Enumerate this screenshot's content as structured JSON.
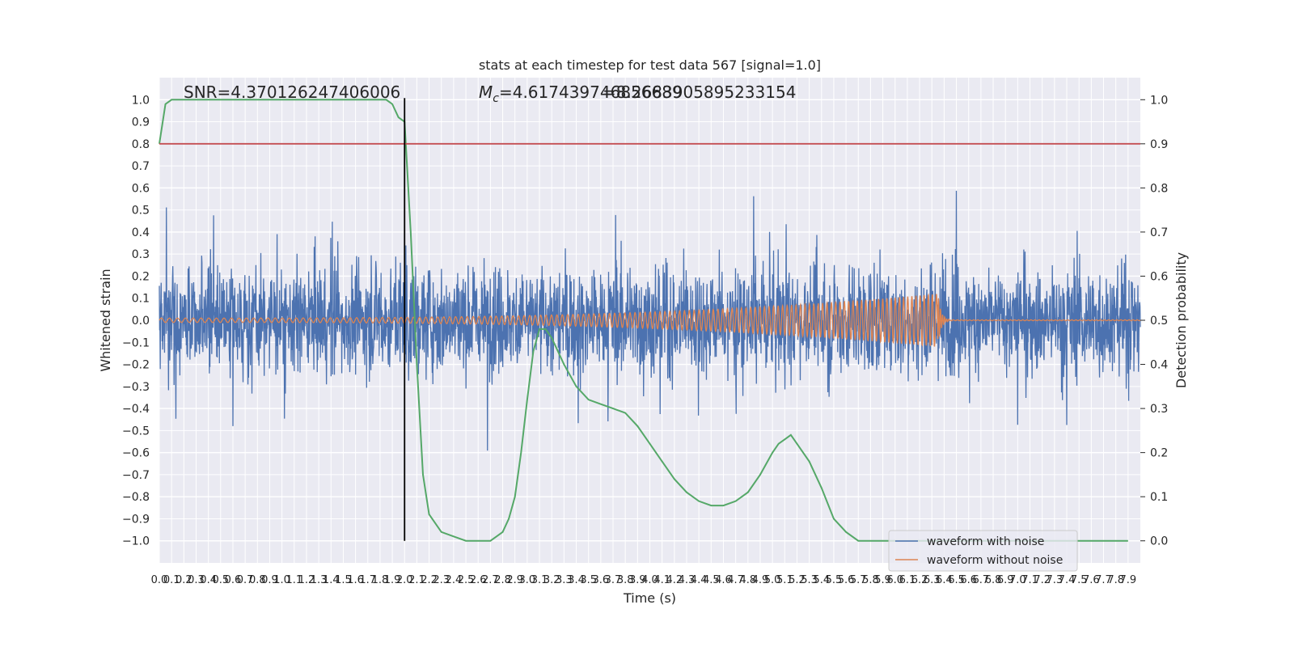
{
  "chart_data": {
    "type": "line",
    "title": "stats at each timestep for test data 567 [signal=1.0]",
    "xlabel": "Time (s)",
    "ylabel": "Whitened strain",
    "ylabel_right": "Detection probability",
    "xlim": [
      0.0,
      8.0
    ],
    "ylim": [
      -1.1,
      1.1
    ],
    "ylim_right": [
      -0.05,
      1.05
    ],
    "x_ticks": [
      "0.0",
      "0.1",
      "0.2",
      "0.3",
      "0.4",
      "0.5",
      "0.6",
      "0.7",
      "0.8",
      "0.9",
      "1.0",
      "1.1",
      "1.2",
      "1.3",
      "1.4",
      "1.5",
      "1.6",
      "1.7",
      "1.8",
      "1.9",
      "2.0",
      "2.1",
      "2.2",
      "2.3",
      "2.4",
      "2.5",
      "2.6",
      "2.7",
      "2.8",
      "2.9",
      "3.0",
      "3.1",
      "3.2",
      "3.3",
      "3.4",
      "3.5",
      "3.6",
      "3.7",
      "3.8",
      "3.9",
      "4.0",
      "4.1",
      "4.2",
      "4.3",
      "4.4",
      "4.5",
      "4.6",
      "4.7",
      "4.8",
      "4.9",
      "5.0",
      "5.1",
      "5.2",
      "5.3",
      "5.4",
      "5.5",
      "5.6",
      "5.7",
      "5.8",
      "5.9",
      "6.0",
      "6.1",
      "6.2",
      "6.3",
      "6.4",
      "6.5",
      "6.6",
      "6.7",
      "6.8",
      "6.9",
      "7.0",
      "7.1",
      "7.2",
      "7.3",
      "7.4",
      "7.5",
      "7.6",
      "7.7",
      "7.8",
      "7.9"
    ],
    "y_ticks": [
      "1.0",
      "0.9",
      "0.8",
      "0.7",
      "0.6",
      "0.5",
      "0.4",
      "0.3",
      "0.2",
      "0.1",
      "0.0",
      "−0.1",
      "−0.2",
      "−0.3",
      "−0.4",
      "−0.5",
      "−0.6",
      "−0.7",
      "−0.8",
      "−0.9",
      "−1.0"
    ],
    "y_ticks_right": [
      "1.0",
      "0.9",
      "0.8",
      "0.7",
      "0.6",
      "0.5",
      "0.4",
      "0.3",
      "0.2",
      "0.1",
      "0.0"
    ],
    "grid": true,
    "legend_placement": "lower-right",
    "annotations": {
      "snr": "SNR=4.370126247406006",
      "mc": "=4.617439746856689",
      "mc_symbol": "M",
      "mc_subscript": "c",
      "overlap": "=8.2683905895233154"
    },
    "threshold_probability": 0.9,
    "threshold_color": "#c44e52",
    "detection_time": 2.0,
    "series": [
      {
        "name": "waveform with noise",
        "color": "#4c72b0",
        "description_values": "dense noise samples spanning roughly -1.0 to 1.0"
      },
      {
        "name": "waveform without noise",
        "color": "#dd8452",
        "chirp": {
          "start": 0.0,
          "merger": 6.35,
          "amp_start": 0.01,
          "amp_merger": 0.12
        }
      },
      {
        "color": "#55a868",
        "axis": "right",
        "x": [
          0.0,
          0.05,
          0.1,
          0.2,
          0.3,
          0.4,
          0.6,
          0.8,
          1.0,
          1.2,
          1.4,
          1.6,
          1.75,
          1.85,
          1.9,
          1.95,
          2.0,
          2.05,
          2.1,
          2.15,
          2.2,
          2.3,
          2.4,
          2.5,
          2.6,
          2.7,
          2.75,
          2.8,
          2.85,
          2.9,
          2.95,
          3.0,
          3.05,
          3.1,
          3.15,
          3.2,
          3.3,
          3.4,
          3.5,
          3.6,
          3.7,
          3.8,
          3.9,
          4.0,
          4.1,
          4.2,
          4.3,
          4.4,
          4.5,
          4.6,
          4.7,
          4.8,
          4.9,
          5.0,
          5.05,
          5.1,
          5.15,
          5.2,
          5.3,
          5.4,
          5.5,
          5.6,
          5.7,
          5.8,
          6.0,
          6.5,
          7.0,
          7.5,
          7.9
        ],
        "values": [
          0.9,
          0.99,
          1.0,
          1.0,
          1.0,
          1.0,
          1.0,
          1.0,
          1.0,
          1.0,
          1.0,
          1.0,
          1.0,
          1.0,
          0.99,
          0.96,
          0.95,
          0.7,
          0.4,
          0.15,
          0.06,
          0.02,
          0.01,
          0.0,
          0.0,
          0.0,
          0.01,
          0.02,
          0.05,
          0.1,
          0.2,
          0.32,
          0.43,
          0.48,
          0.48,
          0.46,
          0.4,
          0.35,
          0.32,
          0.31,
          0.3,
          0.29,
          0.26,
          0.22,
          0.18,
          0.14,
          0.11,
          0.09,
          0.08,
          0.08,
          0.09,
          0.11,
          0.15,
          0.2,
          0.22,
          0.23,
          0.24,
          0.22,
          0.18,
          0.12,
          0.05,
          0.02,
          0.0,
          0.0,
          0.0,
          0.0,
          0.0,
          0.0,
          0.0
        ]
      }
    ]
  }
}
